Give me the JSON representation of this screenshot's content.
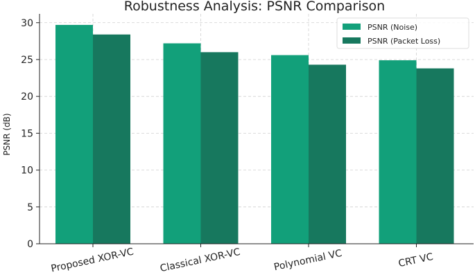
{
  "chart_data": {
    "type": "bar",
    "title": "Robustness Analysis: PSNR Comparison",
    "xlabel": "",
    "ylabel": "PSNR (dB)",
    "categories": [
      "Proposed XOR-VC",
      "Classical XOR-VC",
      "Polynomial VC",
      "CRT VC"
    ],
    "series": [
      {
        "name": "PSNR (Noise)",
        "values": [
          29.7,
          27.2,
          25.6,
          24.9
        ],
        "color": "#12a07a"
      },
      {
        "name": "PSNR (Packet Loss)",
        "values": [
          28.4,
          26.0,
          24.3,
          23.8
        ],
        "color": "#17785e"
      }
    ],
    "ylim": [
      0,
      31.2
    ],
    "yticks": [
      0,
      5,
      10,
      15,
      20,
      25,
      30
    ],
    "grid": true,
    "legend_position": "top-right"
  }
}
